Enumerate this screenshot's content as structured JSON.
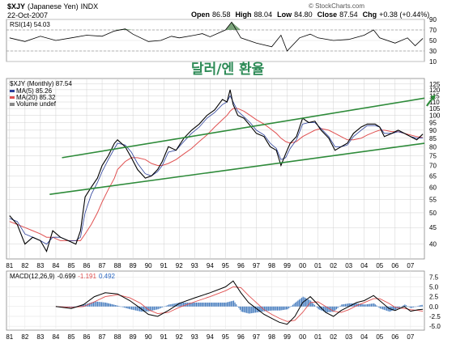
{
  "header": {
    "symbol": "$XJY",
    "name": "(Japanese Yen)",
    "exchange": "INDX",
    "date": "22-Oct-2007",
    "open_label": "Open",
    "open": "86.58",
    "high_label": "High",
    "high": "88.04",
    "low_label": "Low",
    "low": "84.80",
    "close_label": "Close",
    "close": "87.54",
    "chg_label": "Chg",
    "chg": "+0.38 (+0.44%)",
    "watermark": "© StockCharts.com"
  },
  "annotation": "달러/엔 환율",
  "colors": {
    "price": "#000000",
    "ma5": "#2a3f9a",
    "ma20": "#e05050",
    "trendline": "#2e8b3a",
    "rsi_band": "#5a8f5a",
    "macd_hist": "#4a7fc0",
    "grid": "#d0d0d0",
    "frame": "#888888"
  },
  "x_ticks": [
    "81",
    "82",
    "83",
    "84",
    "85",
    "86",
    "87",
    "88",
    "89",
    "90",
    "91",
    "92",
    "93",
    "94",
    "95",
    "96",
    "97",
    "98",
    "99",
    "00",
    "01",
    "02",
    "03",
    "04",
    "05",
    "06",
    "07"
  ],
  "chart_data": [
    {
      "panel": "rsi",
      "type": "line",
      "label": "RSI(14) 54.03",
      "ylim": [
        10,
        90
      ],
      "y_ticks": [
        10,
        30,
        50,
        70,
        90
      ],
      "reference_lines": [
        30,
        70
      ],
      "series": [
        {
          "name": "RSI(14)",
          "x": [
            1981.0,
            1982.0,
            1983.0,
            1984.0,
            1985.0,
            1986.0,
            1987.0,
            1987.8,
            1988.5,
            1989.0,
            1990.0,
            1990.8,
            1991.5,
            1992.0,
            1993.0,
            1993.5,
            1994.0,
            1995.0,
            1995.4,
            1996.0,
            1997.0,
            1998.0,
            1998.6,
            1999.0,
            1999.8,
            2000.5,
            2001.0,
            2002.0,
            2003.0,
            2004.0,
            2004.6,
            2005.0,
            2006.0,
            2006.8,
            2007.3,
            2007.8
          ],
          "values": [
            55,
            48,
            58,
            50,
            55,
            60,
            58,
            68,
            72,
            62,
            48,
            50,
            58,
            55,
            60,
            63,
            57,
            70,
            85,
            55,
            45,
            38,
            60,
            30,
            55,
            62,
            55,
            50,
            52,
            60,
            70,
            55,
            45,
            55,
            40,
            54
          ]
        }
      ]
    },
    {
      "panel": "price",
      "type": "line",
      "title": "$XJY (Monthly) 87.54",
      "legend": [
        "MA(5) 85.26",
        "MA(20) 85.32",
        "Volume undef"
      ],
      "yscale": "log",
      "ylim": [
        36,
        130
      ],
      "y_ticks": [
        40,
        45,
        50,
        55,
        60,
        65,
        70,
        75,
        80,
        85,
        90,
        95,
        100,
        105,
        110,
        115,
        120,
        125
      ],
      "series": [
        {
          "name": "$XJY",
          "x": [
            1981.0,
            1981.5,
            1982.0,
            1982.5,
            1983.0,
            1983.4,
            1983.8,
            1984.3,
            1984.8,
            1985.3,
            1985.6,
            1985.9,
            1986.3,
            1986.7,
            1987.0,
            1987.4,
            1987.8,
            1988.0,
            1988.5,
            1988.9,
            1989.3,
            1989.8,
            1990.2,
            1990.6,
            1990.9,
            1991.3,
            1991.8,
            1992.3,
            1992.8,
            1993.3,
            1993.8,
            1994.3,
            1994.8,
            1995.1,
            1995.3,
            1995.5,
            1995.8,
            1996.2,
            1996.6,
            1997.0,
            1997.5,
            1997.9,
            1998.3,
            1998.6,
            1998.9,
            1999.2,
            1999.6,
            2000.0,
            2000.4,
            2000.8,
            2001.2,
            2001.7,
            2002.1,
            2002.5,
            2002.9,
            2003.3,
            2003.8,
            2004.2,
            2004.7,
            2005.0,
            2005.3,
            2005.8,
            2006.2,
            2006.6,
            2007.0,
            2007.4,
            2007.8
          ],
          "values": [
            49,
            46,
            40,
            42,
            41,
            38,
            44,
            42,
            41,
            40,
            44,
            56,
            60,
            64,
            70,
            75,
            82,
            84,
            80,
            74,
            68,
            64,
            65,
            68,
            72,
            80,
            78,
            85,
            90,
            94,
            100,
            104,
            112,
            110,
            120,
            108,
            100,
            98,
            93,
            88,
            86,
            80,
            78,
            70,
            76,
            82,
            86,
            98,
            95,
            96,
            90,
            85,
            78,
            80,
            82,
            88,
            92,
            94,
            94,
            92,
            86,
            88,
            90,
            88,
            86,
            84,
            87.54
          ]
        },
        {
          "name": "MA(5)",
          "x": [
            1981.0,
            1981.5,
            1982.0,
            1982.5,
            1983.0,
            1983.4,
            1983.8,
            1984.3,
            1984.8,
            1985.3,
            1985.6,
            1985.9,
            1986.3,
            1986.7,
            1987.0,
            1987.4,
            1987.8,
            1988.0,
            1988.5,
            1988.9,
            1989.3,
            1989.8,
            1990.2,
            1990.6,
            1990.9,
            1991.3,
            1991.8,
            1992.3,
            1992.8,
            1993.3,
            1993.8,
            1994.3,
            1994.8,
            1995.1,
            1995.3,
            1995.5,
            1995.8,
            1996.2,
            1996.6,
            1997.0,
            1997.5,
            1997.9,
            1998.3,
            1998.6,
            1998.9,
            1999.2,
            1999.6,
            2000.0,
            2000.4,
            2000.8,
            2001.2,
            2001.7,
            2002.1,
            2002.5,
            2002.9,
            2003.3,
            2003.8,
            2004.2,
            2004.7,
            2005.0,
            2005.3,
            2005.8,
            2006.2,
            2006.6,
            2007.0,
            2007.4,
            2007.8
          ],
          "values": [
            48,
            47,
            43,
            42,
            41,
            40,
            42,
            42,
            41,
            41,
            42,
            50,
            57,
            62,
            67,
            73,
            79,
            82,
            81,
            77,
            71,
            66,
            65,
            67,
            70,
            77,
            78,
            83,
            88,
            92,
            98,
            102,
            108,
            110,
            115,
            110,
            103,
            99,
            95,
            90,
            87,
            82,
            79,
            73,
            74,
            79,
            84,
            94,
            95,
            95,
            91,
            86,
            80,
            80,
            81,
            86,
            90,
            93,
            93,
            92,
            88,
            88,
            89,
            88,
            86,
            85,
            85.26
          ]
        },
        {
          "name": "MA(20)",
          "x": [
            1981.0,
            1981.5,
            1982.0,
            1982.5,
            1983.0,
            1983.4,
            1983.8,
            1984.3,
            1984.8,
            1985.3,
            1985.6,
            1985.9,
            1986.3,
            1986.7,
            1987.0,
            1987.4,
            1987.8,
            1988.0,
            1988.5,
            1988.9,
            1989.3,
            1989.8,
            1990.2,
            1990.6,
            1990.9,
            1991.3,
            1991.8,
            1992.3,
            1992.8,
            1993.3,
            1993.8,
            1994.3,
            1994.8,
            1995.1,
            1995.3,
            1995.5,
            1995.8,
            1996.2,
            1996.6,
            1997.0,
            1997.5,
            1997.9,
            1998.3,
            1998.6,
            1998.9,
            1999.2,
            1999.6,
            2000.0,
            2000.4,
            2000.8,
            2001.2,
            2001.7,
            2002.1,
            2002.5,
            2002.9,
            2003.3,
            2003.8,
            2004.2,
            2004.7,
            2005.0,
            2005.3,
            2005.8,
            2006.2,
            2006.6,
            2007.0,
            2007.4,
            2007.8
          ],
          "values": [
            47,
            46,
            45,
            44,
            43,
            42,
            42,
            41,
            41,
            41,
            41,
            43,
            46,
            50,
            54,
            59,
            64,
            68,
            72,
            74,
            74,
            73,
            71,
            70,
            70,
            71,
            73,
            76,
            79,
            83,
            87,
            92,
            97,
            100,
            103,
            105,
            105,
            103,
            100,
            97,
            94,
            91,
            88,
            85,
            83,
            82,
            83,
            86,
            88,
            90,
            91,
            90,
            88,
            86,
            84,
            84,
            85,
            87,
            89,
            90,
            90,
            89,
            89,
            88,
            87,
            86,
            85.32
          ]
        }
      ],
      "trendlines": [
        {
          "name": "upper",
          "x": [
            1984.4,
            2007.9
          ],
          "values": [
            74,
            113
          ]
        },
        {
          "name": "lower",
          "x": [
            1983.6,
            2007.9
          ],
          "values": [
            57,
            82
          ]
        }
      ]
    },
    {
      "panel": "macd",
      "type": "line",
      "label": "MACD(12,26,9)",
      "values_label": [
        "-0.699",
        "-1.191",
        "0.492"
      ],
      "ylim": [
        -6,
        9
      ],
      "y_ticks": [
        -5.0,
        -2.5,
        0.0,
        2.5,
        5.0,
        7.5
      ],
      "series": [
        {
          "name": "MACD",
          "x": [
            1984.0,
            1985.0,
            1985.8,
            1986.5,
            1987.2,
            1988.0,
            1988.8,
            1989.5,
            1990.0,
            1990.6,
            1991.3,
            1992.0,
            1993.0,
            1994.0,
            1995.0,
            1995.5,
            1996.0,
            1996.5,
            1997.0,
            1997.5,
            1998.0,
            1998.5,
            1999.0,
            1999.5,
            2000.0,
            2000.5,
            2001.0,
            2001.5,
            2002.0,
            2002.5,
            2003.0,
            2003.5,
            2004.0,
            2004.6,
            2005.0,
            2005.6,
            2006.0,
            2006.6,
            2007.0,
            2007.5,
            2007.8
          ],
          "values": [
            0,
            -0.5,
            0.5,
            2.5,
            3.5,
            3.2,
            1.5,
            -0.5,
            -2.0,
            -2.5,
            -1.0,
            0.8,
            2.2,
            3.5,
            5.0,
            6.5,
            3.5,
            1.0,
            -0.5,
            -2.0,
            -3.0,
            -4.0,
            -4.5,
            -2.5,
            1.0,
            2.5,
            0.5,
            -1.5,
            -2.5,
            -1.0,
            0.0,
            1.0,
            1.5,
            2.8,
            1.5,
            -0.5,
            -1.0,
            0.0,
            -1.2,
            -0.8,
            -0.699
          ]
        },
        {
          "name": "Signal",
          "x": [
            1984.0,
            1985.0,
            1985.8,
            1986.5,
            1987.2,
            1988.0,
            1988.8,
            1989.5,
            1990.0,
            1990.6,
            1991.3,
            1992.0,
            1993.0,
            1994.0,
            1995.0,
            1995.5,
            1996.0,
            1996.5,
            1997.0,
            1997.5,
            1998.0,
            1998.5,
            1999.0,
            1999.5,
            2000.0,
            2000.5,
            2001.0,
            2001.5,
            2002.0,
            2002.5,
            2003.0,
            2003.5,
            2004.0,
            2004.6,
            2005.0,
            2005.6,
            2006.0,
            2006.6,
            2007.0,
            2007.5,
            2007.8
          ],
          "values": [
            0,
            -0.2,
            0.0,
            1.2,
            2.5,
            3.0,
            2.2,
            0.8,
            -0.8,
            -1.8,
            -1.5,
            -0.2,
            1.2,
            2.5,
            4.0,
            5.0,
            4.8,
            2.8,
            1.0,
            -0.8,
            -2.0,
            -3.0,
            -3.8,
            -3.5,
            -1.5,
            1.0,
            1.2,
            0.0,
            -1.2,
            -1.5,
            -0.8,
            0.2,
            1.0,
            2.0,
            2.0,
            0.8,
            -0.2,
            -0.5,
            -0.8,
            -1.0,
            -1.191
          ]
        },
        {
          "name": "Histogram",
          "x": [
            1984.0,
            1985.0,
            1985.8,
            1986.5,
            1987.2,
            1988.0,
            1988.8,
            1989.5,
            1990.0,
            1990.6,
            1991.3,
            1992.0,
            1993.0,
            1994.0,
            1995.0,
            1995.5,
            1996.0,
            1996.5,
            1997.0,
            1997.5,
            1998.0,
            1998.5,
            1999.0,
            1999.5,
            2000.0,
            2000.5,
            2001.0,
            2001.5,
            2002.0,
            2002.5,
            2003.0,
            2003.5,
            2004.0,
            2004.6,
            2005.0,
            2005.6,
            2006.0,
            2006.6,
            2007.0,
            2007.5,
            2007.8
          ],
          "values": [
            0,
            -0.3,
            0.5,
            1.3,
            1.0,
            0.2,
            -0.7,
            -1.3,
            -1.2,
            -0.7,
            0.5,
            1.0,
            1.0,
            1.0,
            1.0,
            1.5,
            -1.3,
            -1.8,
            -1.5,
            -1.2,
            -1.0,
            -1.0,
            -0.7,
            1.0,
            2.5,
            1.5,
            -0.7,
            -1.5,
            -1.3,
            0.5,
            0.8,
            0.8,
            0.5,
            0.8,
            -0.5,
            -1.3,
            -0.8,
            0.5,
            -0.4,
            0.2,
            0.492
          ]
        }
      ]
    }
  ]
}
